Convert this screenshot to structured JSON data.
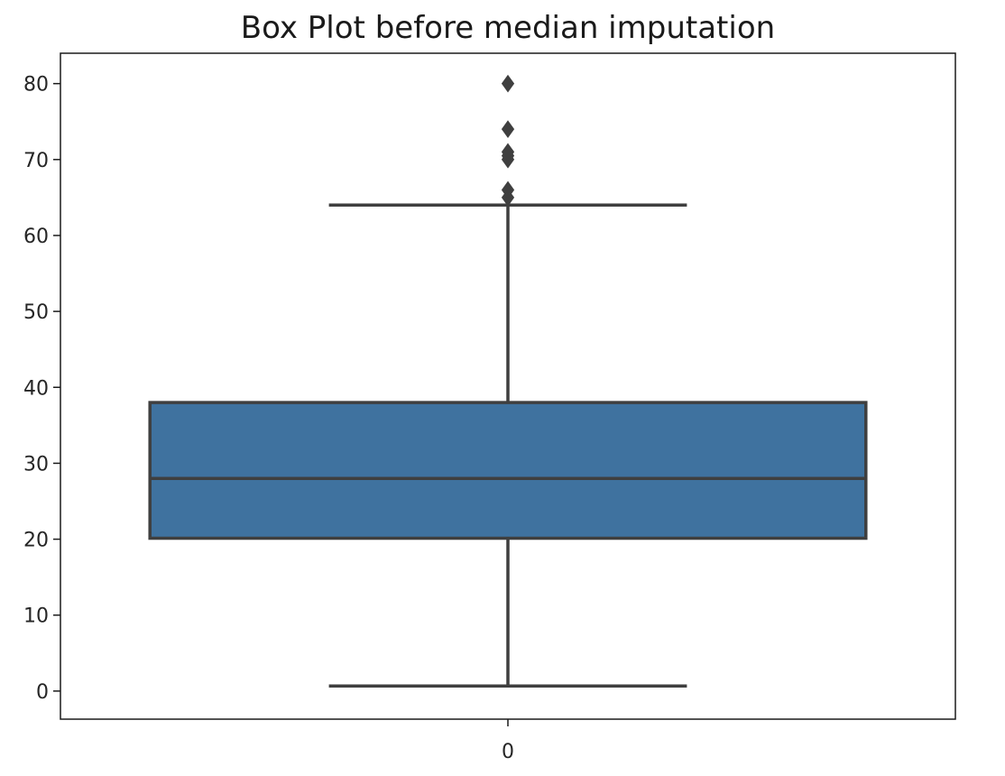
{
  "chart_data": {
    "type": "box",
    "title": "Box Plot before median imputation",
    "xlabel": "",
    "ylabel": "",
    "categories": [
      "0"
    ],
    "ylim": [
      -3.7,
      84.0
    ],
    "yticks": [
      0,
      10,
      20,
      30,
      40,
      50,
      60,
      70,
      80
    ],
    "grid": false,
    "legend": "none",
    "boxes": [
      {
        "category": "0",
        "whisker_low": 0.67,
        "q1": 20.125,
        "median": 28.0,
        "q3": 38.0,
        "whisker_high": 64.0,
        "outliers": [
          65.0,
          66.0,
          70.0,
          70.5,
          71.0,
          74.0,
          80.0
        ]
      }
    ],
    "colors": {
      "box_fill": "#3f729f",
      "line": "#3f3f3f",
      "text": "#262626",
      "frame": "#1a1a1a"
    }
  }
}
